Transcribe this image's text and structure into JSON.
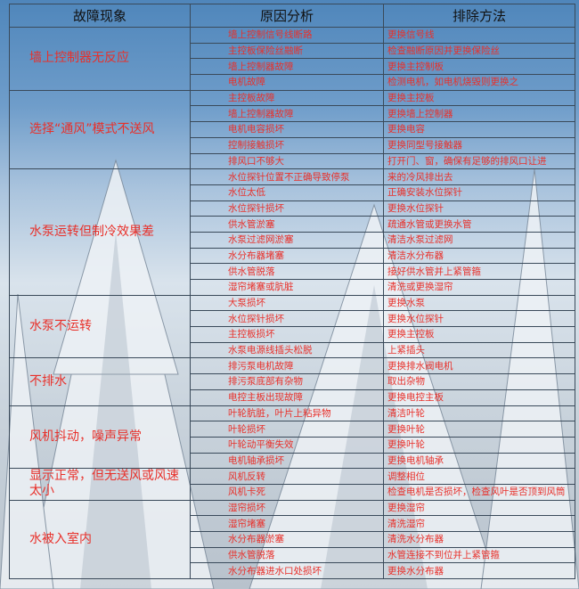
{
  "headers": [
    "故障现象",
    "原因分析",
    "排除方法"
  ],
  "colors": {
    "text_red": "#e8302a",
    "header_text": "#111111",
    "sky": "#4f86bb"
  },
  "groups": [
    {
      "symptom": "墙上控制器无反应",
      "rows": [
        {
          "cause": "墙上控制信号线断路",
          "fix": "更换信号线"
        },
        {
          "cause": "主控板保险丝融断",
          "fix": "检查融断原因并更换保险丝"
        },
        {
          "cause": "墙上控制器故障",
          "fix": "更换主控制板"
        },
        {
          "cause": "电机故障",
          "fix": "检测电机，如电机烧毁则更换之"
        }
      ]
    },
    {
      "symptom": "选择“通风”模式不送风",
      "rows": [
        {
          "cause": "主控板故障",
          "fix": "更换主控板"
        },
        {
          "cause": "墙上控制器故障",
          "fix": "更换墙上控制器"
        },
        {
          "cause": "电机电容损坏",
          "fix": "更换电容"
        },
        {
          "cause": "控制接触损坏",
          "fix": "更换同型号接触器"
        },
        {
          "cause": "排风口不够大",
          "fix": "打开门、窗，确保有足够的排风口让进"
        }
      ]
    },
    {
      "symptom": "水泵运转但制冷效果差",
      "rows": [
        {
          "cause": "水位探针位置不正确导致停泵",
          "fix": "来的冷风排出去"
        },
        {
          "cause": "水位太低",
          "fix": "正确安装水位探针"
        },
        {
          "cause": "水位探针损坏",
          "fix": "更换水位探针"
        },
        {
          "cause": "供水管淤塞",
          "fix": "疏通水管或更换水管"
        },
        {
          "cause": "水泵过滤网淤塞",
          "fix": "清洁水泵过滤网"
        },
        {
          "cause": "水分布器堵塞",
          "fix": "清洁水分布器"
        },
        {
          "cause": "供水管脱落",
          "fix": "接好供水管并上紧管箍"
        },
        {
          "cause": "湿帘堵塞或肮脏",
          "fix": "清洗或更换湿帘"
        }
      ]
    },
    {
      "symptom": "水泵不运转",
      "rows": [
        {
          "cause": "大泵损坏",
          "fix": "更换水泵"
        },
        {
          "cause": "水位探针损坏",
          "fix": "更换水位探针"
        },
        {
          "cause": "主控板损坏",
          "fix": "更换主控板"
        },
        {
          "cause": "水泵电源线插头松脱",
          "fix": "上紧插头"
        }
      ]
    },
    {
      "symptom": "不排水",
      "rows": [
        {
          "cause": "排污泵电机故障",
          "fix": "更换排水阀电机"
        },
        {
          "cause": "排污泵底部有杂物",
          "fix": "取出杂物"
        },
        {
          "cause": "电控主板出现故障",
          "fix": "更换电控主板"
        }
      ]
    },
    {
      "symptom": "风机抖动，噪声异常",
      "rows": [
        {
          "cause": "叶轮肮脏，叶片上粘异物",
          "fix": "清洁叶轮"
        },
        {
          "cause": "叶轮损坏",
          "fix": "更换叶轮"
        },
        {
          "cause": "叶轮动平衡失效",
          "fix": "更换叶轮"
        },
        {
          "cause": "电机轴承损坏",
          "fix": "更换电机轴承"
        }
      ]
    },
    {
      "symptom": "显示正常，但无送风或风速太小",
      "rows": [
        {
          "cause": "风机反转",
          "fix": "调整相位"
        },
        {
          "cause": "风机卡死",
          "fix": "检查电机是否损坏，检查风叶是否顶到风筒"
        }
      ]
    },
    {
      "symptom": "水被入室内",
      "rows": [
        {
          "cause": "湿帘损坏",
          "fix": "更换湿帘"
        },
        {
          "cause": "湿帘堵塞",
          "fix": "清洗湿帘"
        },
        {
          "cause": "水分布器淤塞",
          "fix": "清洗水分布器"
        },
        {
          "cause": "供水管脱落",
          "fix": "水管连接不到位并上紧管箍"
        },
        {
          "cause": "水分布器进水口处损坏",
          "fix": "更换水分布器"
        }
      ]
    }
  ]
}
